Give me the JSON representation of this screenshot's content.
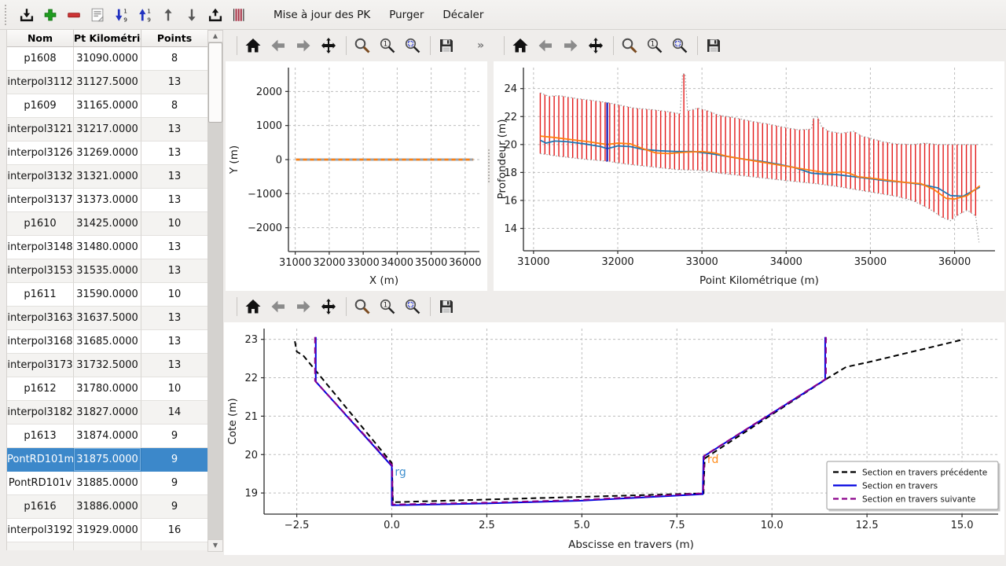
{
  "main_toolbar": {
    "icons": [
      "import",
      "add",
      "remove",
      "edit-pk",
      "sort-descending",
      "sort-ascending",
      "move-up",
      "move-down",
      "export",
      "sections"
    ],
    "buttons": [
      "Mise à jour des PK",
      "Purger",
      "Décaler"
    ]
  },
  "plot_toolbar": {
    "groups": [
      [
        "home",
        "back",
        "forward",
        "pan"
      ],
      [
        "zoom",
        "zoom-region",
        "zoom-fit"
      ],
      [
        "save"
      ]
    ],
    "overflow_label": "»"
  },
  "table": {
    "columns": [
      "Nom",
      "Pt Kilométrique",
      "Points"
    ],
    "rows": [
      [
        "p1608",
        "31090.0000",
        "8"
      ],
      [
        "interpol3112",
        "31127.5000",
        "13"
      ],
      [
        "p1609",
        "31165.0000",
        "8"
      ],
      [
        "interpol3121",
        "31217.0000",
        "13"
      ],
      [
        "interpol3126",
        "31269.0000",
        "13"
      ],
      [
        "interpol3132",
        "31321.0000",
        "13"
      ],
      [
        "interpol3137",
        "31373.0000",
        "13"
      ],
      [
        "p1610",
        "31425.0000",
        "10"
      ],
      [
        "interpol3148",
        "31480.0000",
        "13"
      ],
      [
        "interpol3153",
        "31535.0000",
        "13"
      ],
      [
        "p1611",
        "31590.0000",
        "10"
      ],
      [
        "interpol3163",
        "31637.5000",
        "13"
      ],
      [
        "interpol3168",
        "31685.0000",
        "13"
      ],
      [
        "interpol3173",
        "31732.5000",
        "13"
      ],
      [
        "p1612",
        "31780.0000",
        "10"
      ],
      [
        "interpol3182",
        "31827.0000",
        "14"
      ],
      [
        "p1613",
        "31874.0000",
        "9"
      ],
      [
        "PontRD101m",
        "31875.0000",
        "9"
      ],
      [
        "PontRD101v",
        "31885.0000",
        "9"
      ],
      [
        "p1616",
        "31886.0000",
        "9"
      ],
      [
        "interpol3192",
        "31929.0000",
        "16"
      ]
    ],
    "partial_row": true
  },
  "ui_state": {
    "selected_row": 17,
    "selected_name": "PontRD101m"
  },
  "colors": {
    "selection": "#3c88ca",
    "bars": "#e31a1a",
    "line_blue": "#1f77b4",
    "line_orange": "#ff7f0e",
    "section_blue": "#0000e0",
    "section_purple": "#8b008b",
    "selected_vline": "#2222b8"
  },
  "chart_data": [
    {
      "type": "line",
      "xlabel": "X (m)",
      "ylabel": "Y (m)",
      "xlim": [
        30800,
        36420
      ],
      "ylim": [
        -2700,
        2700
      ],
      "xticks": [
        31000,
        32000,
        33000,
        34000,
        35000,
        36000
      ],
      "xtick_labels": [
        "31000",
        "32000",
        "33000",
        "34000",
        "35000",
        "36000"
      ],
      "yticks": [
        -2000,
        -1000,
        0,
        1000,
        2000
      ],
      "ytick_labels": [
        "−2000",
        "−1000",
        "0",
        "1000",
        "2000"
      ],
      "grid": true,
      "series": [
        {
          "type": "line",
          "name": "trace-base",
          "color": "#9aa2aa",
          "width": 3,
          "points": [
            [
              31020,
              0
            ],
            [
              36240,
              0
            ]
          ]
        },
        {
          "type": "line",
          "name": "trace-axis",
          "color": "#ff7f0e",
          "width": 2.4,
          "dash": "5 4",
          "points": [
            [
              31020,
              0
            ],
            [
              36240,
              0
            ]
          ]
        }
      ]
    },
    {
      "type": "line",
      "xlabel": "Point Kilométrique (m)",
      "ylabel": "Profondeur (m)",
      "xlim": [
        30880,
        36480
      ],
      "ylim": [
        12.4,
        25.5
      ],
      "xticks": [
        31000,
        32000,
        33000,
        34000,
        35000,
        36000
      ],
      "xtick_labels": [
        "31000",
        "32000",
        "33000",
        "34000",
        "35000",
        "36000"
      ],
      "yticks": [
        14,
        16,
        18,
        20,
        22,
        24
      ],
      "ytick_labels": [
        "14",
        "16",
        "18",
        "20",
        "22",
        "24"
      ],
      "grid": true,
      "series": [
        {
          "type": "band-bars",
          "name": "sections-extent",
          "color": "#e31a1a",
          "width": 1.4,
          "spacing": 55,
          "x0": 31080,
          "x1": 36290,
          "top": [
            [
              31080,
              23.7
            ],
            [
              31180,
              23.45
            ],
            [
              31300,
              23.5
            ],
            [
              31500,
              23.3
            ],
            [
              31700,
              23.15
            ],
            [
              31875,
              23.0
            ],
            [
              32000,
              22.85
            ],
            [
              32200,
              22.6
            ],
            [
              32400,
              22.5
            ],
            [
              32600,
              22.35
            ],
            [
              32740,
              22.2
            ],
            [
              32770,
              25.05
            ],
            [
              32800,
              25.05
            ],
            [
              32830,
              22.4
            ],
            [
              32950,
              22.6
            ],
            [
              33050,
              22.45
            ],
            [
              33200,
              22.1
            ],
            [
              33400,
              21.9
            ],
            [
              33600,
              21.65
            ],
            [
              33800,
              21.45
            ],
            [
              34000,
              21.2
            ],
            [
              34150,
              21.05
            ],
            [
              34300,
              21.1
            ],
            [
              34330,
              22.0
            ],
            [
              34370,
              22.0
            ],
            [
              34420,
              21.3
            ],
            [
              34500,
              20.95
            ],
            [
              34650,
              20.8
            ],
            [
              34800,
              20.95
            ],
            [
              34900,
              20.6
            ],
            [
              35000,
              20.45
            ],
            [
              35150,
              20.2
            ],
            [
              35300,
              20.05
            ],
            [
              35500,
              20.0
            ],
            [
              35650,
              20.1
            ],
            [
              35800,
              20.0
            ],
            [
              36000,
              20.0
            ],
            [
              36290,
              20.0
            ]
          ],
          "bottom": [
            [
              31080,
              19.35
            ],
            [
              31300,
              19.15
            ],
            [
              31600,
              18.95
            ],
            [
              31875,
              18.8
            ],
            [
              32100,
              18.6
            ],
            [
              32400,
              18.4
            ],
            [
              32700,
              18.2
            ],
            [
              33000,
              18.15
            ],
            [
              33200,
              17.95
            ],
            [
              33500,
              17.75
            ],
            [
              33800,
              17.55
            ],
            [
              34100,
              17.35
            ],
            [
              34350,
              17.2
            ],
            [
              34600,
              17.0
            ],
            [
              34900,
              16.7
            ],
            [
              35100,
              16.5
            ],
            [
              35300,
              16.3
            ],
            [
              35500,
              16.0
            ],
            [
              35700,
              15.4
            ],
            [
              35850,
              14.8
            ],
            [
              35950,
              14.55
            ],
            [
              36050,
              15.0
            ],
            [
              36150,
              15.3
            ],
            [
              36250,
              14.9
            ],
            [
              36290,
              13.0
            ]
          ]
        },
        {
          "type": "line",
          "name": "fond-blue",
          "color": "#1f77b4",
          "width": 1.8,
          "points": [
            [
              31080,
              20.3
            ],
            [
              31150,
              20.1
            ],
            [
              31250,
              20.25
            ],
            [
              31400,
              20.2
            ],
            [
              31600,
              20.05
            ],
            [
              31800,
              19.85
            ],
            [
              31875,
              19.7
            ],
            [
              32000,
              19.9
            ],
            [
              32150,
              19.85
            ],
            [
              32300,
              19.65
            ],
            [
              32500,
              19.55
            ],
            [
              32700,
              19.5
            ],
            [
              32900,
              19.5
            ],
            [
              33100,
              19.35
            ],
            [
              33300,
              19.15
            ],
            [
              33500,
              18.95
            ],
            [
              33700,
              18.8
            ],
            [
              33900,
              18.6
            ],
            [
              34100,
              18.35
            ],
            [
              34300,
              17.95
            ],
            [
              34400,
              17.9
            ],
            [
              34600,
              17.85
            ],
            [
              34800,
              17.7
            ],
            [
              35000,
              17.55
            ],
            [
              35200,
              17.4
            ],
            [
              35400,
              17.3
            ],
            [
              35600,
              17.15
            ],
            [
              35800,
              16.9
            ],
            [
              35950,
              16.35
            ],
            [
              36100,
              16.3
            ],
            [
              36300,
              16.95
            ]
          ]
        },
        {
          "type": "line",
          "name": "fond-orange",
          "color": "#ff7f0e",
          "width": 1.8,
          "points": [
            [
              31080,
              20.6
            ],
            [
              31250,
              20.5
            ],
            [
              31450,
              20.35
            ],
            [
              31650,
              20.2
            ],
            [
              31875,
              20.0
            ],
            [
              32000,
              20.1
            ],
            [
              32150,
              20.05
            ],
            [
              32300,
              19.7
            ],
            [
              32450,
              19.4
            ],
            [
              32600,
              19.35
            ],
            [
              32800,
              19.45
            ],
            [
              33000,
              19.5
            ],
            [
              33150,
              19.4
            ],
            [
              33300,
              19.15
            ],
            [
              33500,
              18.95
            ],
            [
              33700,
              18.75
            ],
            [
              33900,
              18.55
            ],
            [
              34100,
              18.35
            ],
            [
              34350,
              18.1
            ],
            [
              34500,
              17.95
            ],
            [
              34650,
              18.05
            ],
            [
              34750,
              17.95
            ],
            [
              34850,
              17.7
            ],
            [
              35000,
              17.6
            ],
            [
              35200,
              17.45
            ],
            [
              35400,
              17.3
            ],
            [
              35600,
              17.2
            ],
            [
              35750,
              16.8
            ],
            [
              35900,
              16.15
            ],
            [
              36000,
              16.1
            ],
            [
              36150,
              16.35
            ],
            [
              36300,
              17.05
            ]
          ]
        },
        {
          "type": "vline",
          "name": "selected-section-marker",
          "color": "#2222b8",
          "width": 2.4,
          "x": 31875,
          "y0": 18.78,
          "y1": 23.0
        }
      ]
    },
    {
      "type": "line",
      "xlabel": "Abscisse en travers (m)",
      "ylabel": "Cote (m)",
      "xlim": [
        -3.36,
        15.95
      ],
      "ylim": [
        18.45,
        23.28
      ],
      "xticks": [
        -2.5,
        0,
        2.5,
        5,
        7.5,
        10,
        12.5,
        15
      ],
      "xtick_labels": [
        "−2.5",
        "0.0",
        "2.5",
        "5.0",
        "7.5",
        "10.0",
        "12.5",
        "15.0"
      ],
      "yticks": [
        19,
        20,
        21,
        22,
        23
      ],
      "ytick_labels": [
        "19",
        "20",
        "21",
        "22",
        "23"
      ],
      "grid": true,
      "series": [
        {
          "type": "line",
          "name": "section-precedente",
          "color": "#000000",
          "width": 2,
          "dash": "7 4.5",
          "points": [
            [
              -2.55,
              22.95
            ],
            [
              -2.5,
              22.68
            ],
            [
              -2.33,
              22.58
            ],
            [
              0,
              19.78
            ],
            [
              0.03,
              18.76
            ],
            [
              8.2,
              18.99
            ],
            [
              8.23,
              19.9
            ],
            [
              11.45,
              21.98
            ],
            [
              11.95,
              22.28
            ],
            [
              12.6,
              22.42
            ],
            [
              15.05,
              23.0
            ]
          ]
        },
        {
          "type": "line",
          "name": "section-courante",
          "color": "#0000e0",
          "width": 2,
          "points": [
            [
              -2.0,
              23.06
            ],
            [
              -2.0,
              21.9
            ],
            [
              0,
              19.7
            ],
            [
              0,
              18.68
            ],
            [
              2.5,
              18.73
            ],
            [
              5.0,
              18.8
            ],
            [
              8.18,
              18.97
            ],
            [
              8.2,
              19.95
            ],
            [
              11.4,
              21.95
            ],
            [
              11.4,
              23.06
            ]
          ]
        },
        {
          "type": "line",
          "name": "section-suivante",
          "color": "#8b008b",
          "width": 2,
          "dash": "8 5",
          "points": [
            [
              -2.02,
              23.06
            ],
            [
              -2.02,
              21.92
            ],
            [
              0.01,
              19.72
            ],
            [
              0.02,
              18.7
            ],
            [
              2.5,
              18.75
            ],
            [
              5.0,
              18.82
            ],
            [
              8.19,
              18.99
            ],
            [
              8.22,
              19.97
            ],
            [
              11.42,
              21.97
            ],
            [
              11.42,
              23.06
            ]
          ]
        }
      ],
      "annotations": [
        {
          "x": 0.08,
          "y": 19.45,
          "text": "rg",
          "color": "#3f8fce"
        },
        {
          "x": 8.3,
          "y": 19.78,
          "text": "rd",
          "color": "#ff8c1a"
        }
      ],
      "legend": {
        "items": [
          {
            "label": "Section en travers précédente",
            "color": "#000000",
            "dash": "7 4"
          },
          {
            "label": "Section en travers",
            "color": "#0000e0",
            "dash": ""
          },
          {
            "label": "Section en travers suivante",
            "color": "#8b008b",
            "dash": "7 4"
          }
        ]
      }
    }
  ]
}
